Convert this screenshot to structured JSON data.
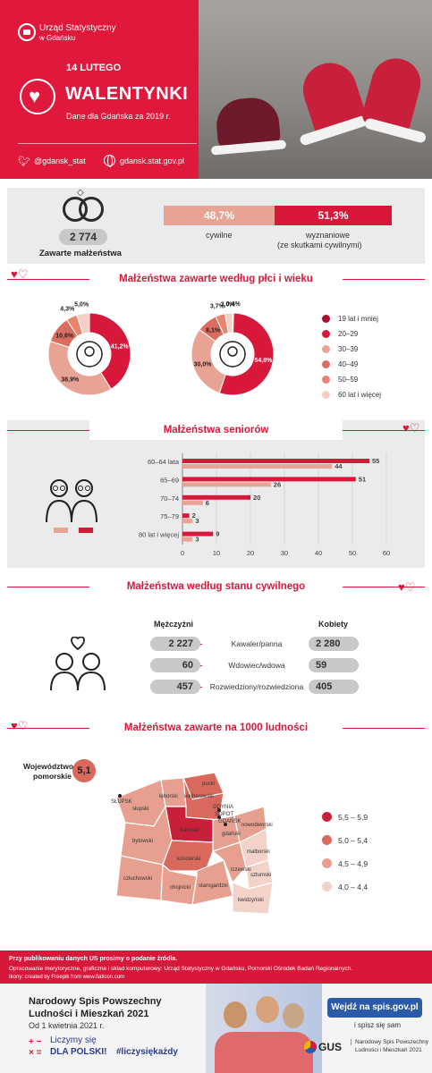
{
  "header": {
    "logo_line1": "Urząd Statystyczny",
    "logo_line2": "w Gdańsku",
    "date": "14 LUTEGO",
    "title": "WALENTYNKI",
    "subtitle": "Dane dla Gdańska za 2019 r.",
    "twitter": "@gdansk_stat",
    "website": "gdansk.stat.gov.pl",
    "colors": {
      "brand_red": "#e0183c"
    }
  },
  "marriages": {
    "total": "2 774",
    "total_label": "Zawarte małżeństwa",
    "civil_pct": "48,7%",
    "religious_pct": "51,3%",
    "civil_label": "cywilne",
    "religious_label_1": "wyznaniowe",
    "religious_label_2": "(ze skutkami cywilnymi)"
  },
  "section_titles": {
    "sex_age": "Małżeństwa zawarte według płci i wieku",
    "seniors": "Małżeństwa seniorów",
    "civil_status": "Małżeństwa według stanu cywilnego",
    "per_1000": "Małżeństwa zawarte na 1000 ludności"
  },
  "chart_data": [
    {
      "type": "pie",
      "series_name": "men",
      "categories": [
        "19 lat i mniej",
        "20–29",
        "30–39",
        "40–49",
        "50–59",
        "60 lat i więcej"
      ],
      "values": [
        0,
        41.2,
        38.9,
        10.6,
        4.3,
        5.0
      ],
      "labels": [
        "",
        "41,2%",
        "38,9%",
        "10,6%",
        "4,3%",
        "5,0%"
      ],
      "colors": [
        "#a8102c",
        "#d8183a",
        "#e8a394",
        "#dc6b60",
        "#e8836f",
        "#f5cfc6"
      ]
    },
    {
      "type": "pie",
      "series_name": "women",
      "categories": [
        "19 lat i mniej",
        "20–29",
        "30–39",
        "40–49",
        "50–59",
        "60 lat i więcej"
      ],
      "values": [
        0.4,
        54.8,
        30.0,
        8.1,
        3.7,
        3.0
      ],
      "labels": [
        "0,4%",
        "54,8%",
        "30,0%",
        "8,1%",
        "3,7%",
        "3,0%"
      ],
      "colors": [
        "#a8102c",
        "#d8183a",
        "#e8a394",
        "#dc6b60",
        "#e8836f",
        "#f5cfc6"
      ]
    },
    {
      "type": "bar",
      "orientation": "horizontal",
      "categories": [
        "60–64 lata",
        "65–69",
        "70–74",
        "75–79",
        "80 lat i więcej"
      ],
      "series": [
        {
          "values": [
            55,
            51,
            20,
            2,
            9
          ],
          "color": "#d8183a"
        },
        {
          "values": [
            44,
            26,
            6,
            3,
            3
          ],
          "color": "#e8a394"
        }
      ],
      "xlim": [
        0,
        60
      ],
      "xticks": [
        "0",
        "10",
        "20",
        "30",
        "40",
        "50",
        "60"
      ],
      "grid": true
    },
    {
      "type": "table",
      "columns": [
        "Mężczyźni",
        "",
        "Kobiety"
      ],
      "rows": [
        [
          "2 227",
          "Kawaler/panna",
          "2 280"
        ],
        [
          "60",
          "Wdowiec/wdowa",
          "59"
        ],
        [
          "457",
          "Rozwiedziony/rozwiedziona",
          "405"
        ]
      ]
    }
  ],
  "legend": [
    "19 lat i mniej",
    "20–29",
    "30–39",
    "40–49",
    "50–59",
    "60 lat i więcej"
  ],
  "map": {
    "voivodeship_label_1": "Województwo",
    "voivodeship_label_2": "pomorskie",
    "voivodeship_value": "5,1",
    "legend": [
      {
        "label": "5,5 – 5,9",
        "color": "#c8203b"
      },
      {
        "label": "5,0 – 5,4",
        "color": "#d9695d"
      },
      {
        "label": "4,5 – 4,9",
        "color": "#e7a08f"
      },
      {
        "label": "4,0 – 4,4",
        "color": "#f3d3c9"
      }
    ],
    "regions": [
      "SŁUPSK",
      "słupski",
      "lęborski",
      "pucki",
      "wejherowski",
      "GDYNIA",
      "SOPOT",
      "GDAŃSK",
      "kartuski",
      "gdański",
      "nowodworski",
      "bytowski",
      "kościerski",
      "malborski",
      "człuchowski",
      "chojnicki",
      "starogardzki",
      "tczewski",
      "sztumski",
      "kwidzyński"
    ]
  },
  "footer": {
    "line1": "Przy publikowaniu danych US prosimy o podanie źródła.",
    "line2": "Opracowanie merytoryczne, graficzne i skład komputerowy: Urząd Statystyczny w Gdańsku, Pomorski Ośrodek Badań Regionalnych.",
    "line3": "Ikony: created by Freepik from www.flaticon.com"
  },
  "census": {
    "title_1": "Narodowy Spis Powszechny",
    "title_2": "Ludności i Mieszkań 2021",
    "date": "Od 1 kwietnia 2021 r.",
    "slogan_1": "Liczymy się",
    "slogan_2": "DLA POLSKI!",
    "hashtag": "#liczysiękażdy",
    "cta": "Wejdź na spis.gov.pl",
    "cta_sub": "i spisz się sam",
    "gus": "GUS",
    "gus_sub_1": "Narodowy Spis Powszechny",
    "gus_sub_2": "Ludności i Mieszkań 2021"
  }
}
